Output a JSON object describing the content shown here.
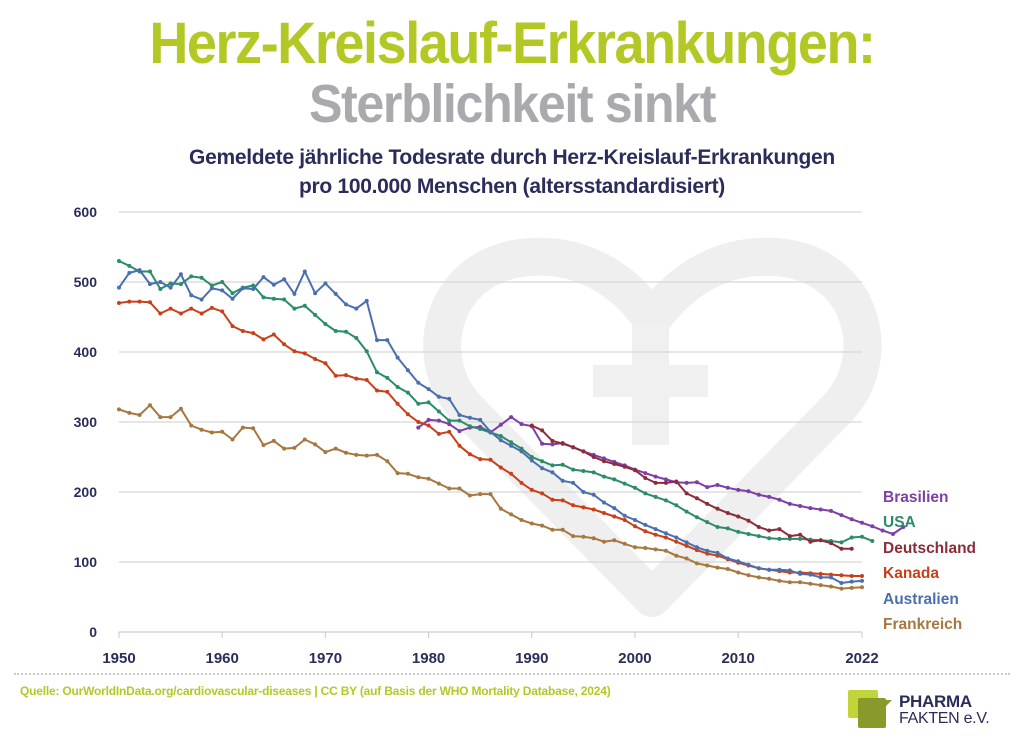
{
  "header": {
    "title_line1": "Herz-Kreislauf-Erkrankungen:",
    "title_line2": "Sterblichkeit sinkt",
    "subtitle_line1": "Gemeldete jährliche Todesrate durch Herz-Kreislauf-Erkrankungen",
    "subtitle_line2": "pro 100.000 Menschen (altersstandardisiert)"
  },
  "footer": {
    "source": "Quelle: OurWorldInData.org/cardiovascular-diseases | CC BY (auf Basis der WHO Mortality Database, 2024)",
    "logo_line1": "PHARMA",
    "logo_line2": "FAKTEN e.V."
  },
  "colors": {
    "title_green": "#b4c825",
    "title_gray": "#a9aaae",
    "navy": "#2b2c5a",
    "grid": "#d6d6d6"
  },
  "chart_data": {
    "type": "line",
    "title": "Gemeldete jährliche Todesrate durch Herz-Kreislauf-Erkrankungen pro 100.000 Menschen (altersstandardisiert)",
    "xlabel": "",
    "ylabel": "",
    "xlim": [
      1950,
      2022
    ],
    "ylim": [
      0,
      600
    ],
    "grid": true,
    "legend_position": "right",
    "x_ticks": [
      "1950",
      "1960",
      "1970",
      "1980",
      "1990",
      "2000",
      "2010",
      "2022"
    ],
    "y_ticks": [
      "0",
      "100",
      "200",
      "300",
      "400",
      "500",
      "600"
    ],
    "series": [
      {
        "name": "Brasilien",
        "color": "#7d3fa6",
        "start_year": 1979,
        "values": [
          292,
          303,
          302,
          297,
          287,
          292,
          293,
          285,
          296,
          307,
          297,
          294,
          269,
          268,
          270,
          264,
          258,
          253,
          248,
          243,
          238,
          232,
          227,
          222,
          218,
          214,
          213,
          214,
          207,
          210,
          206,
          203,
          201,
          196,
          193,
          189,
          183,
          180,
          177,
          175,
          173,
          167,
          161,
          156,
          151,
          145,
          140,
          150
        ]
      },
      {
        "name": "USA",
        "color": "#2a8c68",
        "start_year": 1950,
        "values": [
          530,
          523,
          515,
          515,
          490,
          498,
          497,
          508,
          506,
          495,
          500,
          484,
          492,
          495,
          478,
          476,
          475,
          462,
          466,
          453,
          440,
          430,
          429,
          420,
          401,
          371,
          363,
          350,
          342,
          326,
          328,
          315,
          302,
          302,
          294,
          290,
          285,
          280,
          271,
          262,
          250,
          244,
          238,
          239,
          232,
          230,
          228,
          222,
          218,
          212,
          206,
          198,
          193,
          188,
          181,
          172,
          164,
          157,
          150,
          148,
          143,
          140,
          137,
          134,
          133,
          133,
          133,
          132,
          131,
          130,
          128,
          135,
          136,
          130
        ]
      },
      {
        "name": "Deutschland",
        "color": "#8c2c3a",
        "start_year": 1990,
        "values": [
          295,
          288,
          273,
          269,
          264,
          258,
          250,
          244,
          240,
          236,
          231,
          220,
          213,
          213,
          215,
          198,
          191,
          183,
          176,
          170,
          165,
          159,
          150,
          145,
          147,
          137,
          139,
          129,
          131,
          127,
          119,
          119
        ]
      },
      {
        "name": "Kanada",
        "color": "#c8401a",
        "start_year": 1950,
        "values": [
          470,
          472,
          472,
          471,
          455,
          462,
          455,
          462,
          455,
          463,
          458,
          437,
          430,
          427,
          418,
          425,
          411,
          401,
          398,
          390,
          384,
          366,
          367,
          362,
          360,
          345,
          343,
          326,
          311,
          300,
          295,
          283,
          286,
          266,
          254,
          247,
          246,
          235,
          226,
          213,
          203,
          198,
          189,
          188,
          181,
          178,
          175,
          170,
          165,
          160,
          151,
          144,
          139,
          135,
          129,
          123,
          117,
          112,
          109,
          104,
          99,
          95,
          91,
          89,
          87,
          85,
          85,
          84,
          83,
          82,
          81,
          80,
          80
        ]
      },
      {
        "name": "Australien",
        "color": "#4a6fae",
        "start_year": 1950,
        "values": [
          492,
          513,
          517,
          497,
          500,
          492,
          511,
          481,
          475,
          491,
          488,
          476,
          491,
          490,
          507,
          496,
          504,
          483,
          515,
          484,
          498,
          483,
          468,
          462,
          473,
          417,
          417,
          392,
          374,
          356,
          347,
          336,
          333,
          310,
          306,
          303,
          286,
          274,
          266,
          258,
          245,
          234,
          228,
          216,
          213,
          200,
          196,
          185,
          177,
          166,
          160,
          153,
          147,
          141,
          135,
          128,
          121,
          116,
          113,
          105,
          101,
          96,
          91,
          89,
          89,
          88,
          83,
          82,
          78,
          78,
          70,
          72,
          73
        ]
      },
      {
        "name": "Frankreich",
        "color": "#a67840",
        "start_year": 1950,
        "values": [
          318,
          313,
          310,
          324,
          307,
          307,
          319,
          295,
          289,
          285,
          286,
          275,
          292,
          291,
          267,
          273,
          262,
          263,
          275,
          268,
          257,
          262,
          256,
          253,
          252,
          253,
          244,
          227,
          226,
          221,
          219,
          212,
          205,
          205,
          195,
          197,
          197,
          176,
          168,
          160,
          155,
          152,
          146,
          146,
          137,
          136,
          134,
          129,
          131,
          126,
          121,
          120,
          118,
          116,
          109,
          105,
          98,
          95,
          92,
          90,
          85,
          81,
          78,
          76,
          73,
          71,
          71,
          69,
          67,
          65,
          62,
          63,
          64
        ]
      }
    ]
  }
}
